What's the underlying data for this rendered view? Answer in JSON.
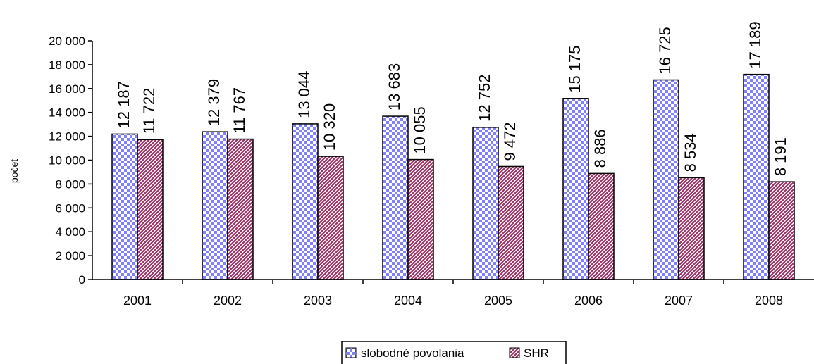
{
  "chart_data": {
    "type": "bar",
    "title": "",
    "xlabel": "",
    "ylabel": "počet",
    "ylim": [
      0,
      20000
    ],
    "y_ticks": [
      "0",
      "2 000",
      "4 000",
      "6 000",
      "8 000",
      "10 000",
      "12 000",
      "14 000",
      "16 000",
      "18 000",
      "20 000"
    ],
    "y_tick_values": [
      0,
      2000,
      4000,
      6000,
      8000,
      10000,
      12000,
      14000,
      16000,
      18000,
      20000
    ],
    "categories": [
      "2001",
      "2002",
      "2003",
      "2004",
      "2005",
      "2006",
      "2007",
      "2008"
    ],
    "series": [
      {
        "name": "slobodné povolania",
        "values": [
          12187,
          12379,
          13044,
          13683,
          12752,
          15175,
          16725,
          17189
        ],
        "labels": [
          "12 187",
          "12 379",
          "13 044",
          "13 683",
          "12 752",
          "15 175",
          "16 725",
          "17 189"
        ],
        "color": "#8080ff",
        "pattern": "checkerboard"
      },
      {
        "name": "SHR",
        "values": [
          11722,
          11767,
          10320,
          10055,
          9472,
          8886,
          8534,
          8191
        ],
        "labels": [
          "11 722",
          "11 767",
          "10 320",
          "10 055",
          "9 472",
          "8 886",
          "8 534",
          "8 191"
        ],
        "color": "#993366",
        "pattern": "diagonal-hatch"
      }
    ],
    "grid": false,
    "legend_position": "bottom-center"
  }
}
